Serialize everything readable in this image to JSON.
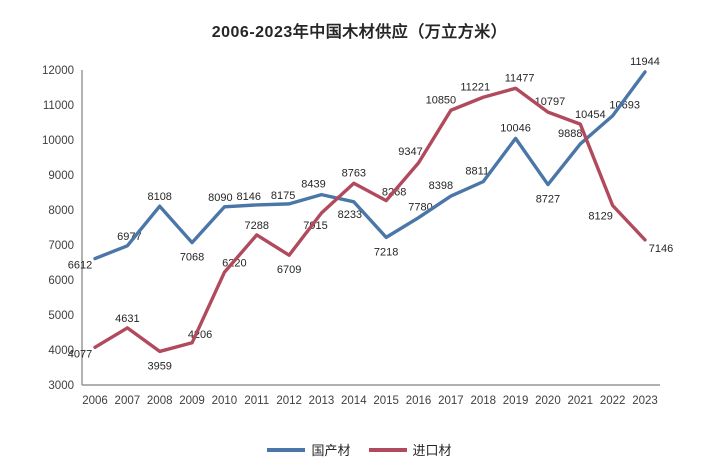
{
  "title": "2006-2023年中国木材供应（万立方米）",
  "chart_data": {
    "type": "line",
    "title": "2006-2023年中国木材供应（万立方米）",
    "categories": [
      "2006",
      "2007",
      "2008",
      "2009",
      "2010",
      "2011",
      "2012",
      "2013",
      "2014",
      "2015",
      "2016",
      "2017",
      "2018",
      "2019",
      "2020",
      "2021",
      "2022",
      "2023"
    ],
    "series": [
      {
        "name": "国产材",
        "color": "#4A77A8",
        "values": [
          6612,
          6977,
          8108,
          7068,
          8090,
          8146,
          8175,
          8439,
          8233,
          7218,
          7780,
          8398,
          8811,
          10046,
          8727,
          9888,
          10693,
          11944
        ]
      },
      {
        "name": "进口材",
        "color": "#B04A5C",
        "values": [
          4077,
          4631,
          3959,
          4206,
          6220,
          7288,
          6709,
          7915,
          8763,
          8268,
          9347,
          10850,
          11221,
          11477,
          10797,
          10454,
          8129,
          7146
        ]
      }
    ],
    "xlabel": "",
    "ylabel": "",
    "ylim": [
      3000,
      12000
    ],
    "ytick_step": 1000,
    "yticks": [
      3000,
      4000,
      5000,
      6000,
      7000,
      8000,
      9000,
      10000,
      11000,
      12000
    ],
    "grid": false,
    "legend_position": "bottom",
    "axis_color": "#808080",
    "tick_label_color": "#404040",
    "data_label_color": "#262626"
  }
}
